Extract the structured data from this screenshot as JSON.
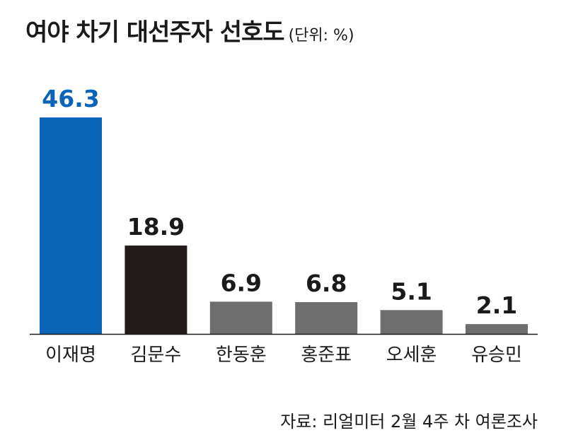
{
  "chart_data": {
    "type": "bar",
    "title": "여야 차기 대선주자 선호도",
    "unit_note": "(단위: %)",
    "categories": [
      "이재명",
      "김문수",
      "한동훈",
      "홍준표",
      "오세훈",
      "유승민"
    ],
    "values": [
      46.3,
      18.9,
      6.9,
      6.8,
      5.1,
      2.1
    ],
    "value_labels": [
      "46.3",
      "18.9",
      "6.9",
      "6.8",
      "5.1",
      "2.1"
    ],
    "colors": [
      "#0a64b8",
      "#231b1a",
      "#6e6e6e",
      "#6e6e6e",
      "#6e6e6e",
      "#6e6e6e"
    ],
    "value_label_colors": [
      "#0a64b8",
      "#1a1a1a",
      "#1a1a1a",
      "#1a1a1a",
      "#1a1a1a",
      "#1a1a1a"
    ],
    "ylim": [
      0,
      46.3
    ],
    "grid": false,
    "source": "자료: 리얼미터 2월 4주 차 여론조사"
  }
}
